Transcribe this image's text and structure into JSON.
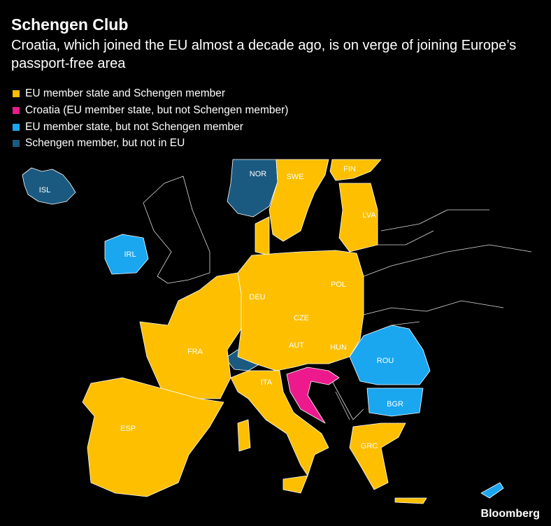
{
  "header": {
    "title": "Schengen Club",
    "subtitle": "Croatia, which joined the EU almost a decade ago, is on verge of joining Europe’s passport-free area"
  },
  "legend": {
    "items": [
      {
        "label": "EU member state and Schengen member",
        "color": "#fdbf00"
      },
      {
        "label": "Croatia (EU member state, but not Schengen member)",
        "color": "#ec1a8c"
      },
      {
        "label": "EU member state, but not Schengen member",
        "color": "#1aa7f0"
      },
      {
        "label": "Schengen member, but not in EU",
        "color": "#1b5a80"
      }
    ]
  },
  "map": {
    "labels": [
      "ISL",
      "NOR",
      "SWE",
      "FIN",
      "LVA",
      "IRL",
      "DEU",
      "POL",
      "CZE",
      "FRA",
      "AUT",
      "HUN",
      "ROU",
      "ITA",
      "BGR",
      "ESP",
      "GRC"
    ]
  },
  "source": "Bloomberg"
}
